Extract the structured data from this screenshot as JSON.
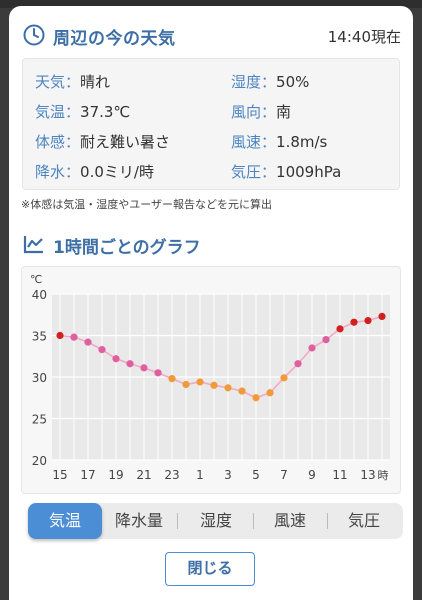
{
  "header": {
    "title": "周辺の今の天気",
    "time": "14:40現在"
  },
  "weather": {
    "left": [
      {
        "label": "天気",
        "value": "晴れ"
      },
      {
        "label": "気温",
        "value": "37.3℃"
      },
      {
        "label": "体感",
        "value": "耐え難い暑さ"
      },
      {
        "label": "降水",
        "value": "0.0ミリ/時"
      }
    ],
    "right": [
      {
        "label": "湿度",
        "value": "50%"
      },
      {
        "label": "風向",
        "value": "南"
      },
      {
        "label": "風速",
        "value": "1.8m/s"
      },
      {
        "label": "気圧",
        "value": "1009hPa"
      }
    ]
  },
  "note": "※体感は気温・湿度やユーザー報告などを元に算出",
  "graph": {
    "title": "1時間ごとのグラフ"
  },
  "tabs": [
    "気温",
    "降水量",
    "湿度",
    "風速",
    "気圧"
  ],
  "close_label": "閉じる",
  "colors": {
    "accent": "#4c8ed6",
    "hot": "#d21f1f",
    "warm": "#e0609f",
    "mild": "#f09a3a"
  },
  "chart_data": {
    "type": "line",
    "unit_label": "℃",
    "x_suffix": "時",
    "x": [
      15,
      16,
      17,
      18,
      19,
      20,
      21,
      22,
      23,
      0,
      1,
      2,
      3,
      4,
      5,
      6,
      7,
      8,
      9,
      10,
      11,
      12,
      13,
      14
    ],
    "x_tick_labels": [
      "15",
      "17",
      "19",
      "21",
      "23",
      "1",
      "3",
      "5",
      "7",
      "9",
      "11",
      "13"
    ],
    "y_ticks": [
      20,
      25,
      30,
      35,
      40
    ],
    "ylim": [
      20,
      40
    ],
    "values": [
      35.0,
      34.8,
      34.2,
      33.3,
      32.2,
      31.6,
      31.1,
      30.5,
      29.8,
      29.1,
      29.4,
      29.0,
      28.7,
      28.3,
      27.5,
      28.1,
      29.9,
      31.6,
      33.5,
      34.5,
      35.8,
      36.6,
      36.8,
      37.3
    ],
    "point_colors": [
      "hot",
      "warm",
      "warm",
      "warm",
      "warm",
      "warm",
      "warm",
      "warm",
      "mild",
      "mild",
      "mild",
      "mild",
      "mild",
      "mild",
      "mild",
      "mild",
      "mild",
      "warm",
      "warm",
      "warm",
      "hot",
      "hot",
      "hot",
      "hot"
    ],
    "grid": true
  }
}
